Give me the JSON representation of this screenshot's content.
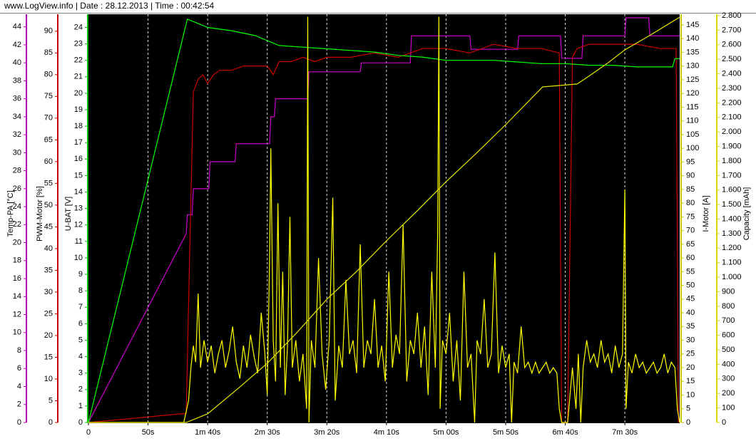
{
  "chart_data": {
    "type": "line",
    "title": "www.LogView.info   |   Date : 28.12.2013   |   Time : 00:42:54",
    "xlim": [
      0,
      496
    ],
    "xticks": [
      0,
      {
        "value": 50,
        "label": "50s"
      },
      {
        "value": 100,
        "label": "1m 40s"
      },
      {
        "value": 150,
        "label": "2m 30s"
      },
      {
        "value": 200,
        "label": "3m 20s"
      },
      {
        "value": 250,
        "label": "4m 10s"
      },
      {
        "value": 300,
        "label": "5m 00s"
      },
      {
        "value": 350,
        "label": "5m 50s"
      },
      {
        "value": 400,
        "label": "6m 40s"
      },
      {
        "value": 450,
        "label": "7m 30s"
      }
    ],
    "grid": true,
    "y_axes": [
      {
        "label": "Temp-PA [°C]",
        "side": "left",
        "color": "#b000b0",
        "line_color": "#cc00cc",
        "ylim": [
          0,
          45.4
        ],
        "yticks": [
          0,
          2,
          4,
          6,
          8,
          10,
          12,
          14,
          16,
          18,
          20,
          22,
          24,
          26,
          28,
          30,
          32,
          34,
          36,
          38,
          40,
          42,
          44
        ],
        "x": [
          0,
          82,
          83,
          87,
          88,
          101,
          102,
          123,
          124,
          152,
          153,
          156,
          157,
          184,
          185,
          228,
          229,
          270,
          271,
          320,
          321,
          360,
          361,
          396,
          397,
          414,
          415,
          450,
          451,
          470,
          471,
          496
        ],
        "values": [
          0,
          21,
          23.1,
          23.1,
          26,
          26,
          29,
          29,
          31,
          31,
          34,
          34,
          36,
          36,
          39,
          39,
          40,
          40,
          43,
          43,
          41.5,
          41.5,
          43,
          43,
          40.5,
          40.5,
          43,
          43,
          45,
          45,
          43,
          43
        ]
      },
      {
        "label": "PWM-Motor [%]",
        "side": "left",
        "color": "#c00000",
        "line_color": "#cc0000",
        "ylim": [
          0,
          93.9
        ],
        "yticks": [
          0,
          5,
          10,
          15,
          20,
          25,
          30,
          35,
          40,
          45,
          50,
          55,
          60,
          65,
          70,
          75,
          80,
          85,
          90
        ],
        "x": [
          0,
          82,
          85,
          88,
          92,
          96,
          100,
          105,
          110,
          120,
          130,
          140,
          150,
          155,
          160,
          170,
          180,
          190,
          200,
          210,
          220,
          240,
          260,
          280,
          300,
          320,
          340,
          360,
          380,
          395,
          397,
          402,
          406,
          410,
          420,
          440,
          460,
          480,
          493,
          495
        ],
        "values": [
          0,
          2.1,
          40,
          76,
          79,
          80,
          78,
          80,
          81,
          81,
          82,
          82,
          82,
          80,
          83,
          83,
          84,
          83,
          84,
          84,
          84,
          85,
          84,
          86,
          86,
          85,
          87,
          86,
          86,
          85,
          0,
          0,
          84,
          86,
          87,
          87,
          87,
          86,
          86,
          0
        ]
      },
      {
        "label": "U-BAT [V]",
        "side": "left",
        "color": "#00c000",
        "line_color": "#00ff00",
        "ylim": [
          0,
          24.8
        ],
        "yticks": [
          0,
          1,
          2,
          3,
          4,
          5,
          6,
          7,
          8,
          9,
          10,
          11,
          12,
          13,
          14,
          15,
          16,
          17,
          18,
          19,
          20,
          21,
          22,
          23,
          24
        ],
        "x": [
          0,
          83,
          90,
          100,
          120,
          140,
          150,
          160,
          180,
          200,
          220,
          240,
          260,
          280,
          300,
          320,
          340,
          360,
          380,
          400,
          420,
          440,
          460,
          480,
          490,
          492,
          496
        ],
        "values": [
          0,
          24.5,
          24.3,
          24.0,
          23.8,
          23.5,
          23.2,
          22.9,
          22.8,
          22.7,
          22.6,
          22.5,
          22.3,
          22.2,
          22.0,
          22.0,
          22.0,
          21.9,
          21.8,
          21.8,
          21.7,
          21.7,
          21.6,
          21.6,
          21.6,
          22.1,
          22.1
        ]
      },
      {
        "label": "I-Motor [A]",
        "side": "right",
        "color": "#c8c800",
        "line_color": "#ffff00",
        "ylim": [
          0,
          148.9
        ],
        "yticks": [
          0,
          5,
          10,
          15,
          20,
          25,
          30,
          35,
          40,
          45,
          50,
          55,
          60,
          65,
          70,
          75,
          80,
          85,
          90,
          95,
          100,
          105,
          110,
          115,
          120,
          125,
          130,
          135,
          140,
          145
        ],
        "x": [
          0,
          80,
          84,
          86,
          88,
          90,
          92,
          94,
          97,
          100,
          103,
          106,
          109,
          112,
          115,
          118,
          121,
          124,
          127,
          130,
          133,
          136,
          139,
          142,
          145,
          148,
          150,
          152,
          153,
          155,
          157,
          159,
          161,
          163,
          165,
          167,
          169,
          171,
          174,
          177,
          180,
          183,
          184,
          185,
          187,
          190,
          193,
          196,
          199,
          202,
          205,
          207,
          210,
          213,
          216,
          219,
          222,
          225,
          228,
          231,
          234,
          237,
          240,
          243,
          246,
          249,
          252,
          255,
          258,
          261,
          264,
          267,
          270,
          273,
          276,
          279,
          282,
          285,
          288,
          291,
          293,
          294,
          295,
          297,
          300,
          303,
          306,
          309,
          312,
          315,
          318,
          321,
          324,
          326,
          329,
          332,
          335,
          338,
          341,
          344,
          347,
          350,
          353,
          355,
          357,
          360,
          363,
          366,
          369,
          372,
          375,
          378,
          381,
          384,
          387,
          390,
          393,
          395,
          397,
          402,
          404,
          406,
          409,
          411,
          413,
          415,
          418,
          421,
          424,
          427,
          430,
          433,
          436,
          439,
          442,
          445,
          448,
          450,
          451,
          453,
          456,
          459,
          462,
          465,
          468,
          471,
          474,
          477,
          480,
          483,
          486,
          489,
          492,
          494,
          496
        ],
        "values": [
          0,
          0,
          8,
          20,
          28,
          22,
          47,
          20,
          30,
          22,
          28,
          18,
          25,
          30,
          20,
          26,
          35,
          22,
          16,
          28,
          20,
          32,
          24,
          18,
          40,
          25,
          10,
          60,
          100,
          30,
          15,
          80,
          20,
          55,
          10,
          28,
          75,
          20,
          30,
          15,
          25,
          5,
          148,
          0,
          30,
          20,
          60,
          25,
          12,
          30,
          82,
          8,
          28,
          20,
          52,
          25,
          30,
          18,
          65,
          20,
          30,
          25,
          45,
          20,
          28,
          15,
          55,
          20,
          32,
          25,
          72,
          15,
          30,
          25,
          40,
          20,
          35,
          10,
          55,
          20,
          70,
          148,
          5,
          30,
          25,
          40,
          15,
          30,
          8,
          55,
          20,
          25,
          0,
          30,
          25,
          45,
          20,
          25,
          62,
          18,
          28,
          20,
          25,
          0,
          22,
          18,
          35,
          20,
          22,
          18,
          22,
          18,
          20,
          22,
          18,
          20,
          18,
          5,
          0,
          0,
          10,
          20,
          5,
          25,
          0,
          20,
          30,
          22,
          25,
          20,
          30,
          22,
          25,
          18,
          28,
          20,
          25,
          85,
          5,
          22,
          18,
          25,
          20,
          22,
          18,
          20,
          22,
          18,
          20,
          25,
          18,
          22,
          20,
          5,
          0
        ]
      },
      {
        "label": "Capacity [mAh]",
        "side": "right",
        "color": "#d8d800",
        "line_color": "#e6e600",
        "ylim": [
          0,
          2810
        ],
        "yticks": [
          0,
          100,
          200,
          300,
          400,
          500,
          600,
          700,
          800,
          900,
          {
            "value": 1000,
            "label": "1.000"
          },
          {
            "value": 1100,
            "label": "1.100"
          },
          {
            "value": 1200,
            "label": "1.200"
          },
          {
            "value": 1300,
            "label": "1.300"
          },
          {
            "value": 1400,
            "label": "1.400"
          },
          {
            "value": 1500,
            "label": "1.500"
          },
          {
            "value": 1600,
            "label": "1.600"
          },
          {
            "value": 1700,
            "label": "1.700"
          },
          {
            "value": 1800,
            "label": "1.800"
          },
          {
            "value": 1900,
            "label": "1.900"
          },
          {
            "value": 2000,
            "label": "2.000"
          },
          {
            "value": 2100,
            "label": "2.100"
          },
          {
            "value": 2200,
            "label": "2.200"
          },
          {
            "value": 2300,
            "label": "2.300"
          },
          {
            "value": 2400,
            "label": "2.400"
          },
          {
            "value": 2500,
            "label": "2.500"
          },
          {
            "value": 2600,
            "label": "2.600"
          },
          {
            "value": 2700,
            "label": "2.700"
          },
          {
            "value": 2800,
            "label": "2.800"
          }
        ],
        "x": [
          0,
          82,
          100,
          125,
          150,
          175,
          200,
          225,
          250,
          275,
          300,
          325,
          350,
          381,
          396,
          410,
          417,
          435,
          450,
          470,
          492,
          496
        ],
        "values": [
          0,
          0,
          60,
          230,
          407,
          620,
          848,
          1040,
          1250,
          1450,
          1657,
          1850,
          2050,
          2310,
          2320,
          2330,
          2368,
          2470,
          2565,
          2660,
          2770,
          2790
        ]
      }
    ]
  }
}
